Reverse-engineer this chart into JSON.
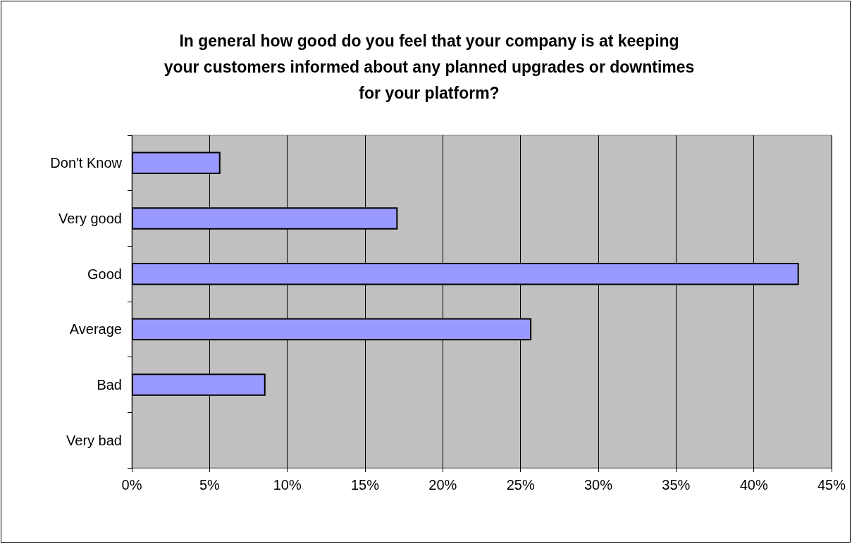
{
  "chart_data": {
    "type": "bar",
    "orientation": "horizontal",
    "title": "In general how good do you feel that your company is at keeping\nyour customers informed about any planned upgrades or downtimes\nfor your platform?",
    "categories": [
      "Don't Know",
      "Very good",
      "Good",
      "Average",
      "Bad",
      "Very bad"
    ],
    "values": [
      5.7,
      17.1,
      42.9,
      25.7,
      8.6,
      0
    ],
    "color": "#9999ff",
    "xlim": [
      0,
      45
    ],
    "xticks": [
      {
        "value": 0,
        "label": "0%"
      },
      {
        "value": 5,
        "label": "5%"
      },
      {
        "value": 10,
        "label": "10%"
      },
      {
        "value": 15,
        "label": "15%"
      },
      {
        "value": 20,
        "label": "20%"
      },
      {
        "value": 25,
        "label": "25%"
      },
      {
        "value": 30,
        "label": "30%"
      },
      {
        "value": 35,
        "label": "35%"
      },
      {
        "value": 40,
        "label": "40%"
      },
      {
        "value": 45,
        "label": "45%"
      }
    ],
    "grid": "x"
  }
}
